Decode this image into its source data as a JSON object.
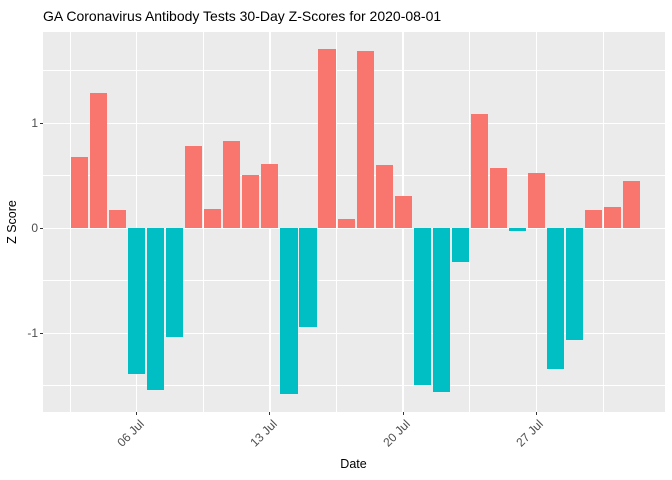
{
  "chart_data": {
    "type": "bar",
    "title": "GA Coronavirus Antibody Tests 30-Day Z-Scores for 2020-08-01",
    "xlabel": "Date",
    "ylabel": "Z Score",
    "x": [
      "2020-07-03",
      "2020-07-04",
      "2020-07-05",
      "2020-07-06",
      "2020-07-07",
      "2020-07-08",
      "2020-07-09",
      "2020-07-10",
      "2020-07-11",
      "2020-07-12",
      "2020-07-13",
      "2020-07-14",
      "2020-07-15",
      "2020-07-16",
      "2020-07-17",
      "2020-07-18",
      "2020-07-19",
      "2020-07-20",
      "2020-07-21",
      "2020-07-22",
      "2020-07-23",
      "2020-07-24",
      "2020-07-25",
      "2020-07-26",
      "2020-07-27",
      "2020-07-28",
      "2020-07-29",
      "2020-07-30",
      "2020-07-31",
      "2020-08-01"
    ],
    "values": [
      0.68,
      1.29,
      0.17,
      -1.39,
      -1.54,
      -1.04,
      0.78,
      0.18,
      0.83,
      0.51,
      0.61,
      -1.58,
      -0.94,
      1.71,
      0.09,
      1.69,
      0.6,
      0.31,
      -1.49,
      -1.56,
      -0.32,
      1.09,
      0.57,
      -0.03,
      0.53,
      -1.34,
      -1.06,
      0.17,
      0.2,
      0.45
    ],
    "x_ticks": [
      {
        "label": "06 Jul",
        "index": 3
      },
      {
        "label": "13 Jul",
        "index": 10
      },
      {
        "label": "20 Jul",
        "index": 17
      },
      {
        "label": "27 Jul",
        "index": 24
      }
    ],
    "y_ticks": [
      {
        "label": "1",
        "value": 1
      },
      {
        "label": "0",
        "value": 0
      },
      {
        "label": "-1",
        "value": -1
      }
    ],
    "y_minor": [
      1.5,
      0.5,
      -0.5,
      -1.5
    ],
    "ylim": [
      -1.75,
      1.87
    ],
    "grid": "on",
    "legend": "none",
    "colors": {
      "positive_bar": "#F8766D",
      "negative_bar": "#00BFC4",
      "panel_background": "#EBEBEB",
      "gridline": "#FFFFFF",
      "tick_label": "#4D4D4D",
      "tick_mark": "#333333",
      "text": "#000000"
    }
  }
}
